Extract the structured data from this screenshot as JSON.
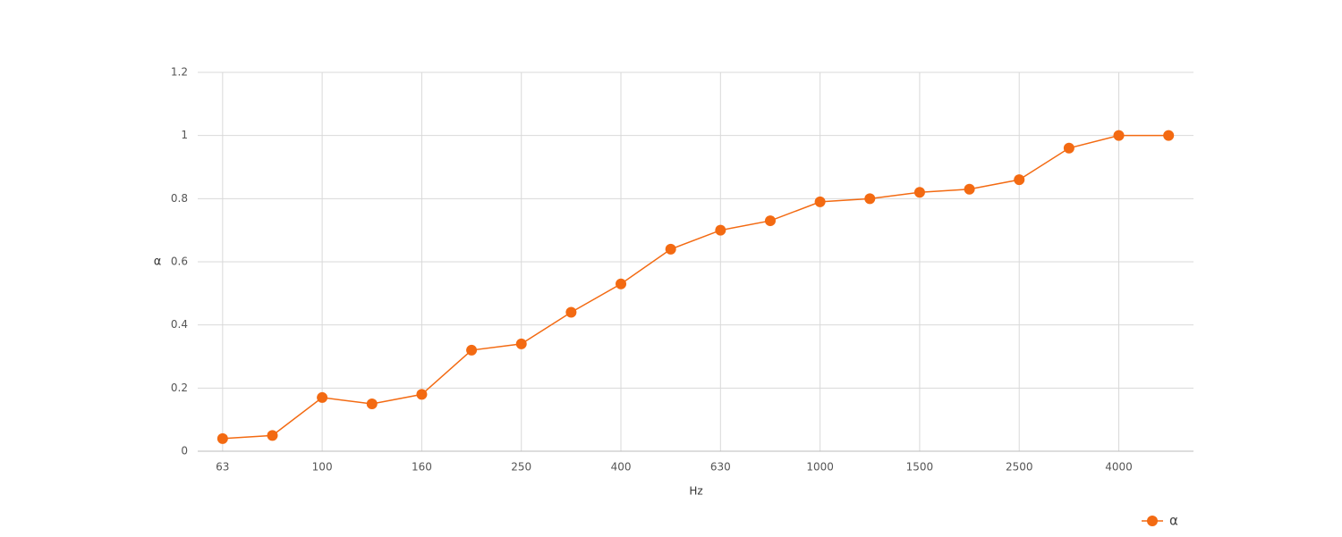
{
  "chart_data": {
    "type": "line",
    "x_label": "Hz",
    "y_label": "α",
    "categories": [
      "63",
      null,
      "100",
      null,
      "160",
      null,
      "250",
      null,
      "400",
      null,
      "630",
      null,
      "1000",
      null,
      "1500",
      null,
      "2500",
      null,
      "4000",
      null
    ],
    "series": [
      {
        "name": "α",
        "color": "#f36a12",
        "values": [
          0.04,
          0.05,
          0.17,
          0.15,
          0.18,
          0.32,
          0.34,
          0.44,
          0.53,
          0.64,
          0.7,
          0.73,
          0.79,
          0.8,
          0.82,
          0.83,
          0.86,
          0.96,
          1.0,
          1.0
        ]
      }
    ],
    "ylim": [
      0,
      1.2
    ],
    "yticks": [
      0,
      0.2,
      0.4,
      0.6,
      0.8,
      1,
      1.2
    ],
    "grid": true,
    "legend": "bottom-right"
  }
}
